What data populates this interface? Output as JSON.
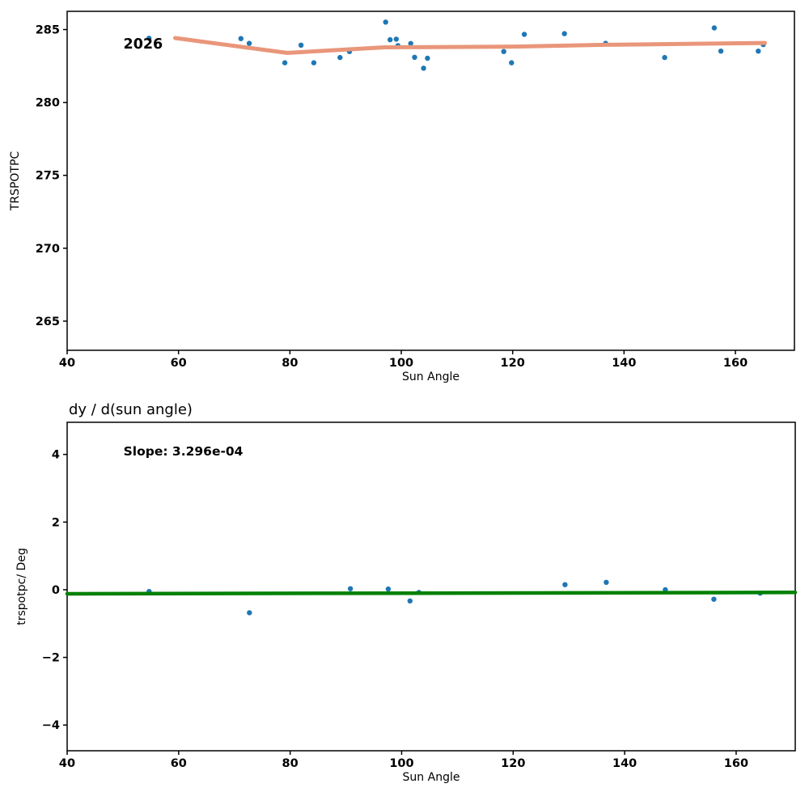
{
  "page": {
    "background": "#ffffff"
  },
  "colors": {
    "scatter": "#1f77b4",
    "trend_line": "#e9967a",
    "fit_line": "#008000",
    "axis": "#000000",
    "text": "#000000"
  },
  "chart_data": [
    {
      "id": "top",
      "type": "scatter",
      "title": "",
      "xlabel": "Sun Angle",
      "ylabel": "TRSPOTPC",
      "xlim": [
        40,
        170.6
      ],
      "ylim": [
        263.0,
        286.25
      ],
      "xticks": [
        40,
        60,
        80,
        100,
        120,
        140,
        160
      ],
      "yticks": [
        265,
        270,
        275,
        280,
        285
      ],
      "grid": false,
      "legend": "none",
      "annotations": [
        {
          "text": "2026",
          "x": 50.1,
          "y": 284.05,
          "bold": true,
          "size": 17.5
        }
      ],
      "scatter": {
        "name": "trspotpc-points",
        "color": "#1f77b4",
        "radius": 3.2,
        "points": [
          [
            54.7,
            284.4
          ],
          [
            71.2,
            284.38
          ],
          [
            72.7,
            284.05
          ],
          [
            79.1,
            282.72
          ],
          [
            82.0,
            283.93
          ],
          [
            84.3,
            282.72
          ],
          [
            89.0,
            283.08
          ],
          [
            90.7,
            283.49
          ],
          [
            97.2,
            285.51
          ],
          [
            98.0,
            284.3
          ],
          [
            99.1,
            284.34
          ],
          [
            99.4,
            283.9
          ],
          [
            101.7,
            284.04
          ],
          [
            102.4,
            283.1
          ],
          [
            104.0,
            282.35
          ],
          [
            104.7,
            283.03
          ],
          [
            118.4,
            283.49
          ],
          [
            119.8,
            282.72
          ],
          [
            122.1,
            284.67
          ],
          [
            129.3,
            284.72
          ],
          [
            136.7,
            284.05
          ],
          [
            147.3,
            283.08
          ],
          [
            156.2,
            285.11
          ],
          [
            157.4,
            283.52
          ],
          [
            164.1,
            283.52
          ],
          [
            165.0,
            283.97
          ]
        ]
      },
      "lines": [
        {
          "name": "trend-line-2026",
          "color": "#e9967a",
          "width": 5,
          "points": [
            [
              59.4,
              284.42
            ],
            [
              79.5,
              283.4
            ],
            [
              97.0,
              283.78
            ],
            [
              120.0,
              283.83
            ],
            [
              136.6,
              283.95
            ],
            [
              165.3,
              284.08
            ]
          ]
        }
      ]
    },
    {
      "id": "bottom",
      "type": "scatter",
      "title": "dy / d(sun angle)",
      "xlabel": "Sun Angle",
      "ylabel": "trspotpc/ Deg",
      "xlim": [
        40,
        170.6
      ],
      "ylim": [
        -4.76,
        4.95
      ],
      "xticks": [
        40,
        60,
        80,
        100,
        120,
        140,
        160
      ],
      "yticks": [
        -4,
        -2,
        0,
        2,
        4
      ],
      "grid": false,
      "legend": "none",
      "annotations": [
        {
          "text": "Slope: 3.296e-04",
          "x": 50.1,
          "y": 4.1,
          "bold": true,
          "size": 15.5
        }
      ],
      "scatter": {
        "name": "derivative-points",
        "color": "#1f77b4",
        "radius": 3.2,
        "points": [
          [
            54.7,
            -0.05
          ],
          [
            72.7,
            -0.68
          ],
          [
            90.8,
            0.03
          ],
          [
            97.6,
            0.02
          ],
          [
            101.5,
            -0.33
          ],
          [
            103.1,
            -0.08
          ],
          [
            129.3,
            0.15
          ],
          [
            136.7,
            0.22
          ],
          [
            147.3,
            0.0
          ],
          [
            156.0,
            -0.28
          ],
          [
            164.3,
            -0.1
          ]
        ]
      },
      "lines": [
        {
          "name": "slope-fit-line",
          "color": "#008000",
          "width": 4.5,
          "points": [
            [
              40,
              -0.12
            ],
            [
              170.6,
              -0.08
            ]
          ]
        }
      ]
    }
  ]
}
